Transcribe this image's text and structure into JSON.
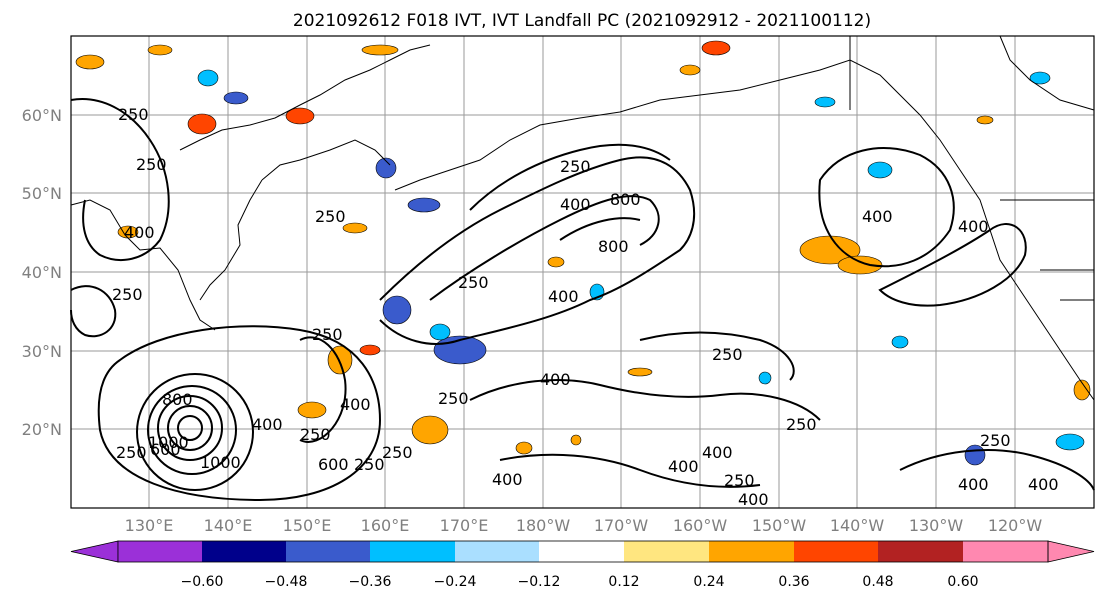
{
  "title": "2021092612 F018 IVT, IVT Landfall PC (2021092912 - 2021100112)",
  "lat_labels": [
    "60°N",
    "50°N",
    "40°N",
    "30°N",
    "20°N"
  ],
  "lon_labels": [
    "130°E",
    "140°E",
    "150°E",
    "160°E",
    "170°E",
    "180°W",
    "170°W",
    "160°W",
    "150°W",
    "140°W",
    "130°W",
    "120°W"
  ],
  "colorbar": {
    "ticks": [
      "−0.60",
      "−0.48",
      "−0.36",
      "−0.24",
      "−0.12",
      "0.12",
      "0.24",
      "0.36",
      "0.48",
      "0.60"
    ],
    "colors": [
      "#9b30d8",
      "#00008b",
      "#3a5bcc",
      "#00bfff",
      "#aadfff",
      "#ffffff",
      "#ffe680",
      "#ffa500",
      "#ff4500",
      "#b22222",
      "#ff88b0"
    ]
  },
  "contour_labels": [
    {
      "text": "250",
      "a": "c1"
    },
    {
      "text": "250",
      "a": "c2"
    },
    {
      "text": "400",
      "a": "c3"
    },
    {
      "text": "250",
      "a": "c4"
    },
    {
      "text": "250",
      "a": "c5"
    },
    {
      "text": "400",
      "a": "c6"
    },
    {
      "text": "800",
      "a": "c7"
    },
    {
      "text": "250",
      "a": "c8"
    },
    {
      "text": "400",
      "a": "c9"
    },
    {
      "text": "800",
      "a": "c10"
    },
    {
      "text": "250",
      "a": "c11"
    },
    {
      "text": "250",
      "a": "c12"
    },
    {
      "text": "400",
      "a": "c13"
    },
    {
      "text": "400",
      "a": "c14"
    },
    {
      "text": "250",
      "a": "c15"
    },
    {
      "text": "600",
      "a": "c16"
    },
    {
      "text": "250",
      "a": "c17"
    },
    {
      "text": "250",
      "a": "c18"
    },
    {
      "text": "800",
      "a": "c19"
    },
    {
      "text": "1000",
      "a": "c20"
    },
    {
      "text": "1000",
      "a": "c21"
    },
    {
      "text": "250",
      "a": "c22"
    },
    {
      "text": "400",
      "a": "c23"
    },
    {
      "text": "400",
      "a": "c24"
    },
    {
      "text": "250",
      "a": "c25"
    },
    {
      "text": "400",
      "a": "c26"
    },
    {
      "text": "400",
      "a": "c27"
    },
    {
      "text": "250",
      "a": "c28"
    },
    {
      "text": "400",
      "a": "c29"
    },
    {
      "text": "250",
      "a": "c30"
    },
    {
      "text": "250",
      "a": "c31"
    },
    {
      "text": "400",
      "a": "c32"
    },
    {
      "text": "400",
      "a": "c33"
    },
    {
      "text": "400",
      "a": "c34"
    },
    {
      "text": "400",
      "a": "c35"
    },
    {
      "text": "600",
      "a": "c36"
    },
    {
      "text": "250",
      "a": "c37"
    }
  ]
}
